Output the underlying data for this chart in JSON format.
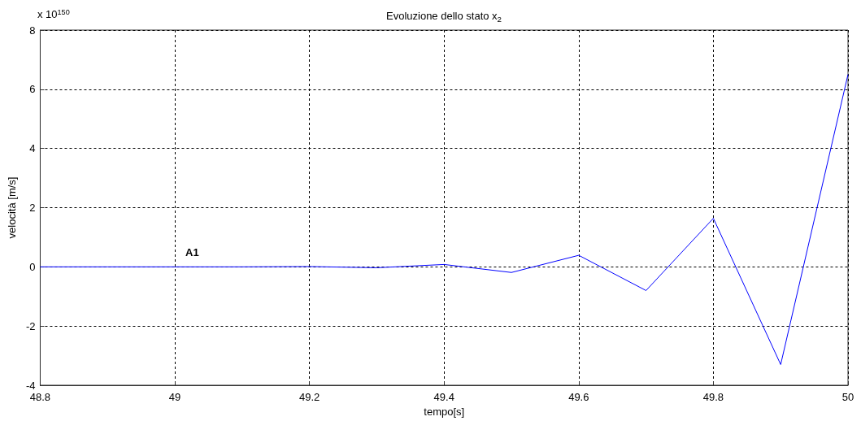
{
  "chart_data": {
    "type": "line",
    "title": "Evoluzione dello stato x$_{2}$",
    "xlabel": "tempo[s]",
    "ylabel": "velocità [m/s]",
    "x": [
      48.8,
      48.9,
      49.0,
      49.1,
      49.2,
      49.3,
      49.4,
      49.5,
      49.6,
      49.7,
      49.8,
      49.9,
      50.0
    ],
    "series": [
      {
        "color": "#0000ff",
        "values": [
          0,
          0,
          0,
          0,
          0.01,
          -0.03,
          0.08,
          -0.19,
          0.39,
          -0.8,
          1.64,
          -3.3,
          6.5
        ]
      }
    ],
    "xlim": [
      48.8,
      50
    ],
    "xticks": [
      48.8,
      49,
      49.2,
      49.4,
      49.6,
      49.8,
      50
    ],
    "ylim": [
      -4,
      8
    ],
    "yticks": [
      -4,
      -2,
      0,
      2,
      4,
      6,
      8
    ],
    "annotations": [
      "x 10$^{150}$",
      "A1"
    ],
    "grid": true,
    "marker": "none",
    "line_style": "solid"
  }
}
